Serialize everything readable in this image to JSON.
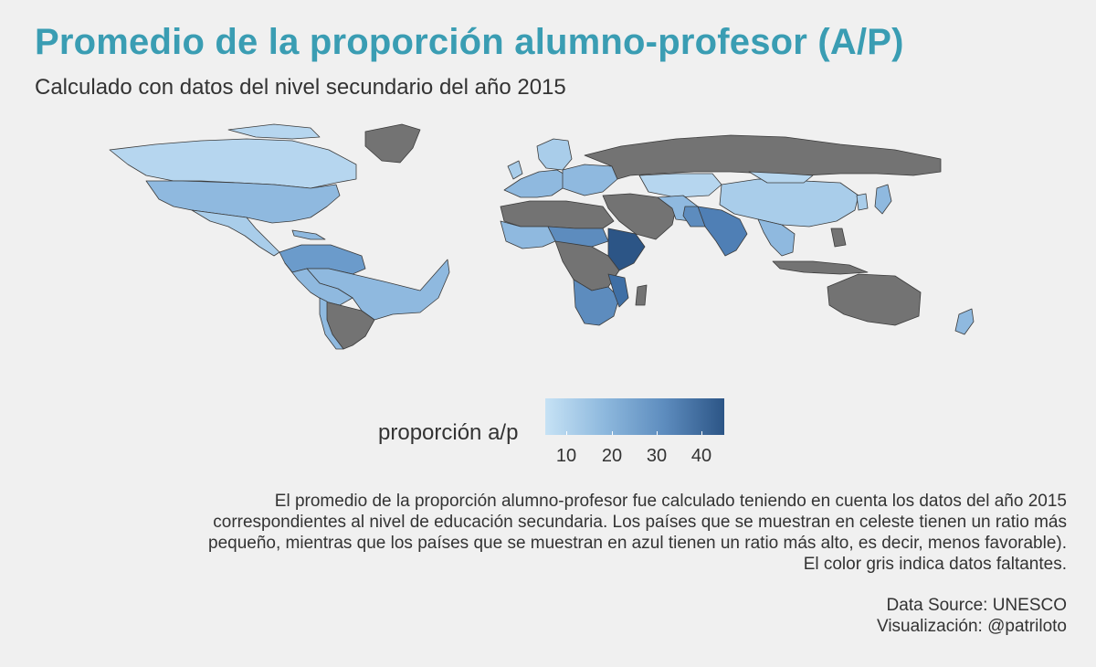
{
  "title": "Promedio de la proporción alumno-profesor (A/P)",
  "subtitle": "Calculado con datos del nivel secundario del año 2015",
  "legend": {
    "title": "proporción a/p",
    "ticks": [
      "10",
      "20",
      "30",
      "40"
    ],
    "color_low": "#c6e2f5",
    "color_high": "#2c5586",
    "missing_color": "#737373"
  },
  "caption_lines": [
    "El promedio de la proporción alumno-profesor fue calculado teniendo en cuenta los datos del año 2015",
    "correspondientes al nivel de educación secundaria. Los países que se muestran en celeste tienen un ratio más",
    "pequeño, mientras que los países que se muestran en azul tienen un ratio más alto, es decir, menos favorable).",
    "El color gris indica datos faltantes."
  ],
  "source_lines": [
    "Data Source: UNESCO",
    "Visualización: @patriloto"
  ]
}
